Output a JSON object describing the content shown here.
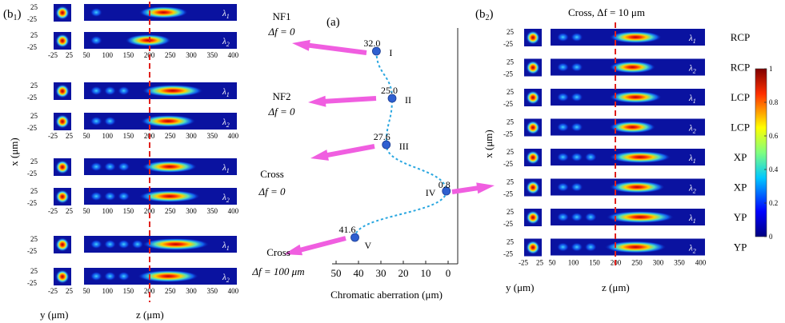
{
  "panel_labels": {
    "b1": "(b",
    "b1_sub": "1",
    "a": "(a)",
    "b2": "(b",
    "b2_sub": "2"
  },
  "close_paren": ")",
  "left_groups": [
    {
      "title": "NF1",
      "delta": "Δf = 0",
      "rows": [
        {
          "wl": "λ",
          "wl_sub": "1",
          "peak": 0.52,
          "spread": 0.16,
          "ripples": 1
        },
        {
          "wl": "λ",
          "wl_sub": "2",
          "peak": 0.42,
          "spread": 0.15,
          "ripples": 1
        }
      ]
    },
    {
      "title": "NF2",
      "delta": "Δf = 0",
      "rows": [
        {
          "wl": "λ",
          "wl_sub": "1",
          "peak": 0.58,
          "spread": 0.2,
          "ripples": 3
        },
        {
          "wl": "λ",
          "wl_sub": "2",
          "peak": 0.55,
          "spread": 0.18,
          "ripples": 2
        }
      ]
    },
    {
      "title": "Cross",
      "delta": "Δf = 0",
      "rows": [
        {
          "wl": "λ",
          "wl_sub": "1",
          "peak": 0.56,
          "spread": 0.18,
          "ripples": 3
        },
        {
          "wl": "λ",
          "wl_sub": "2",
          "peak": 0.56,
          "spread": 0.2,
          "ripples": 3
        }
      ]
    },
    {
      "title": "Cross",
      "delta": "Δf = 100 μm",
      "rows": [
        {
          "wl": "λ",
          "wl_sub": "1",
          "peak": 0.6,
          "spread": 0.22,
          "ripples": 4
        },
        {
          "wl": "λ",
          "wl_sub": "2",
          "peak": 0.55,
          "spread": 0.2,
          "ripples": 3
        }
      ]
    }
  ],
  "left_axes": {
    "y_ticks": [
      "25",
      "-25"
    ],
    "inset_x_ticks": [
      "-25",
      "25"
    ],
    "z_ticks": [
      "50",
      "100",
      "150",
      "200",
      "250",
      "300",
      "350",
      "400"
    ],
    "x_label": "x (μm)",
    "y_label": "y (μm)",
    "z_label": "z (μm)"
  },
  "center": {
    "points": [
      {
        "label": "32.0",
        "roman": "I",
        "value": 32.0
      },
      {
        "label": "25.0",
        "roman": "II",
        "value": 25.0
      },
      {
        "label": "27.6",
        "roman": "III",
        "value": 27.6
      },
      {
        "label": "0.8",
        "roman": "IV",
        "value": 0.8
      },
      {
        "label": "41.6",
        "roman": "V",
        "value": 41.6
      }
    ],
    "x_ticks": [
      "50",
      "40",
      "30",
      "20",
      "10",
      "0"
    ],
    "x_label": "Chromatic aberration (μm)",
    "xlim": [
      50,
      0
    ]
  },
  "right_title": "Cross, Δf = 10 μm",
  "right_rows": [
    {
      "wl": "λ",
      "wl_sub": "1",
      "pol": "RCP",
      "peak": 0.55,
      "spread": 0.17,
      "ripples": 2
    },
    {
      "wl": "λ",
      "wl_sub": "2",
      "pol": "RCP",
      "peak": 0.53,
      "spread": 0.15,
      "ripples": 2
    },
    {
      "wl": "λ",
      "wl_sub": "1",
      "pol": "LCP",
      "peak": 0.55,
      "spread": 0.17,
      "ripples": 2
    },
    {
      "wl": "λ",
      "wl_sub": "2",
      "pol": "LCP",
      "peak": 0.53,
      "spread": 0.15,
      "ripples": 2
    },
    {
      "wl": "λ",
      "wl_sub": "1",
      "pol": "XP",
      "peak": 0.58,
      "spread": 0.2,
      "ripples": 3
    },
    {
      "wl": "λ",
      "wl_sub": "2",
      "pol": "XP",
      "peak": 0.56,
      "spread": 0.18,
      "ripples": 2
    },
    {
      "wl": "λ",
      "wl_sub": "1",
      "pol": "YP",
      "peak": 0.58,
      "spread": 0.22,
      "ripples": 3
    },
    {
      "wl": "λ",
      "wl_sub": "2",
      "pol": "YP",
      "peak": 0.55,
      "spread": 0.2,
      "ripples": 3
    }
  ],
  "right_axes": {
    "y_ticks": [
      "25",
      "-25"
    ],
    "inset_x_ticks": [
      "-25",
      "25"
    ],
    "z_ticks": [
      "50",
      "100",
      "150",
      "200",
      "250",
      "300",
      "350",
      "400"
    ],
    "x_label": "x (μm)",
    "y_label": "y (μm)",
    "z_label": "z (μm)"
  },
  "colorbar": {
    "ticks": [
      "1",
      "0.8",
      "0.6",
      "0.4",
      "0.2",
      "0"
    ],
    "range": [
      0,
      1
    ]
  },
  "colors": {
    "guide_line": "#e0201c",
    "arrow": "#f05ee0",
    "point": "#2f5fd0",
    "curve": "#2aa7e0",
    "field_bg": "#0a12a0"
  }
}
